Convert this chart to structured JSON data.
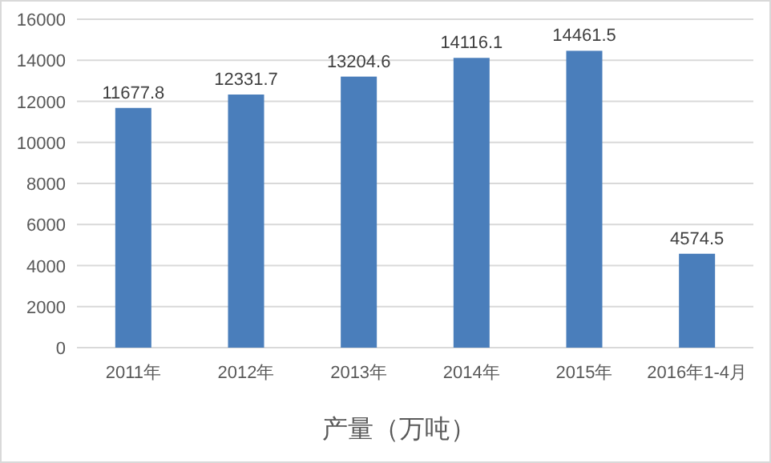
{
  "chart_data": {
    "type": "bar",
    "xlabel": "产量（万吨）",
    "categories": [
      "2011年",
      "2012年",
      "2013年",
      "2014年",
      "2015年",
      "2016年1-4月"
    ],
    "values": [
      11677.8,
      12331.7,
      13204.6,
      14116.1,
      14461.5,
      4574.5
    ],
    "color": "#4a7ebb",
    "ylim": [
      0,
      16000
    ],
    "yticks": [
      0,
      2000,
      4000,
      6000,
      8000,
      10000,
      12000,
      14000,
      16000
    ],
    "grid": "y",
    "data_labels": true
  }
}
